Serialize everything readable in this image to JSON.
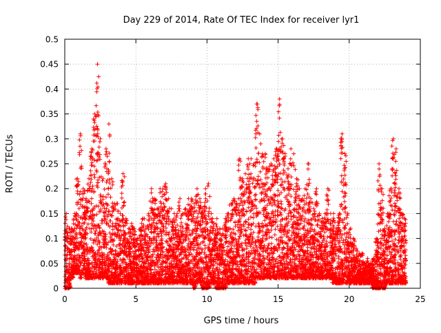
{
  "chart_data": {
    "type": "scatter",
    "title": "Day 229 of 2014, Rate Of TEC Index for receiver lyr1",
    "xlabel": "GPS time / hours",
    "ylabel": "ROTI / TECUs",
    "xlim": [
      0,
      25
    ],
    "ylim": [
      0,
      0.5
    ],
    "x_ticks": [
      "0",
      "5",
      "10",
      "15",
      "20",
      "25"
    ],
    "y_ticks": [
      "0",
      "0.05",
      "0.1",
      "0.15",
      "0.2",
      "0.25",
      "0.3",
      "0.35",
      "0.4",
      "0.45",
      "0.5"
    ],
    "grid": true,
    "marker": "+",
    "series_color": "#ff0000",
    "series": [
      {
        "x": [
          0.0,
          0.2,
          0.4,
          0.6,
          0.8,
          1.0,
          1.2,
          1.4,
          1.6,
          1.8,
          2.0,
          2.2,
          2.4,
          2.6,
          2.8,
          3.0,
          3.2,
          3.4,
          3.6,
          3.8,
          4.0,
          4.2,
          4.4,
          4.6,
          4.8,
          5.0,
          5.2,
          5.4,
          5.6,
          5.8,
          6.0,
          6.2,
          6.4,
          6.6,
          6.8,
          7.0,
          7.2,
          7.4,
          7.6,
          7.8,
          8.0,
          8.2,
          8.4,
          8.6,
          8.8,
          9.0,
          9.2,
          9.4,
          9.6,
          9.8,
          10.0,
          10.2,
          10.4,
          10.6,
          10.8,
          11.0,
          11.2,
          11.4,
          11.6,
          11.8,
          12.0,
          12.2,
          12.4,
          12.6,
          12.8,
          13.0,
          13.2,
          13.4,
          13.6,
          13.8,
          14.0,
          14.2,
          14.4,
          14.6,
          14.8,
          15.0,
          15.2,
          15.4,
          15.6,
          15.8,
          16.0,
          16.2,
          16.4,
          16.6,
          16.8,
          17.0,
          17.2,
          17.4,
          17.6,
          17.8,
          18.0,
          18.2,
          18.4,
          18.6,
          18.8,
          19.0,
          19.2,
          19.4,
          19.6,
          19.8,
          20.0,
          20.2,
          20.4,
          20.6,
          20.8,
          21.0,
          21.2,
          21.4,
          21.6,
          21.8,
          22.0,
          22.2,
          22.4,
          22.6,
          22.8,
          23.0,
          23.2,
          23.4,
          23.6,
          23.8
        ],
        "y_upper": [
          0.15,
          0.12,
          0.12,
          0.15,
          0.22,
          0.31,
          0.2,
          0.18,
          0.22,
          0.28,
          0.35,
          0.45,
          0.3,
          0.22,
          0.28,
          0.33,
          0.22,
          0.17,
          0.17,
          0.15,
          0.23,
          0.14,
          0.12,
          0.13,
          0.12,
          0.1,
          0.12,
          0.14,
          0.12,
          0.15,
          0.2,
          0.18,
          0.16,
          0.2,
          0.2,
          0.21,
          0.18,
          0.16,
          0.15,
          0.15,
          0.18,
          0.15,
          0.16,
          0.18,
          0.18,
          0.17,
          0.2,
          0.18,
          0.16,
          0.2,
          0.21,
          0.15,
          0.13,
          0.14,
          0.12,
          0.12,
          0.14,
          0.15,
          0.17,
          0.18,
          0.17,
          0.26,
          0.22,
          0.23,
          0.26,
          0.26,
          0.25,
          0.37,
          0.31,
          0.27,
          0.27,
          0.24,
          0.25,
          0.26,
          0.28,
          0.38,
          0.3,
          0.27,
          0.24,
          0.28,
          0.27,
          0.22,
          0.2,
          0.18,
          0.2,
          0.25,
          0.18,
          0.16,
          0.2,
          0.15,
          0.14,
          0.15,
          0.2,
          0.15,
          0.15,
          0.12,
          0.15,
          0.31,
          0.27,
          0.15,
          0.12,
          0.1,
          0.08,
          0.07,
          0.07,
          0.05,
          0.06,
          0.05,
          0.06,
          0.1,
          0.25,
          0.2,
          0.12,
          0.15,
          0.2,
          0.3,
          0.28,
          0.2,
          0.15,
          0.14
        ],
        "y_lower": [
          0.0,
          0.0,
          0.02,
          0.03,
          0.03,
          0.02,
          0.03,
          0.02,
          0.02,
          0.02,
          0.02,
          0.02,
          0.02,
          0.02,
          0.02,
          0.01,
          0.01,
          0.01,
          0.01,
          0.01,
          0.01,
          0.01,
          0.01,
          0.01,
          0.01,
          0.01,
          0.01,
          0.01,
          0.01,
          0.01,
          0.01,
          0.01,
          0.01,
          0.01,
          0.01,
          0.01,
          0.01,
          0.01,
          0.01,
          0.01,
          0.01,
          0.01,
          0.01,
          0.01,
          0.01,
          0.0,
          0.01,
          0.01,
          0.0,
          0.0,
          0.0,
          0.01,
          0.01,
          0.0,
          0.0,
          0.0,
          0.0,
          0.01,
          0.01,
          0.01,
          0.01,
          0.01,
          0.01,
          0.01,
          0.01,
          0.01,
          0.01,
          0.02,
          0.02,
          0.02,
          0.02,
          0.02,
          0.02,
          0.02,
          0.02,
          0.02,
          0.02,
          0.02,
          0.02,
          0.02,
          0.02,
          0.02,
          0.02,
          0.02,
          0.02,
          0.02,
          0.02,
          0.02,
          0.02,
          0.02,
          0.02,
          0.02,
          0.02,
          0.02,
          0.01,
          0.01,
          0.01,
          0.01,
          0.01,
          0.01,
          0.01,
          0.01,
          0.01,
          0.01,
          0.01,
          0.01,
          0.01,
          0.01,
          0.0,
          0.0,
          0.0,
          0.0,
          0.0,
          0.01,
          0.01,
          0.01,
          0.01,
          0.01,
          0.01,
          0.01
        ]
      }
    ]
  }
}
